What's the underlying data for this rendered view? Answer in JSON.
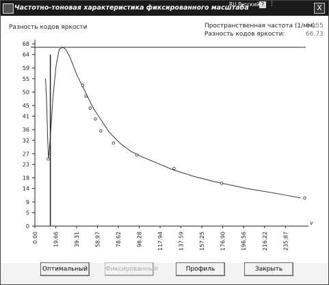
{
  "window": {
    "title": "Частотно-тоновая характеристика фиксированного масштаба",
    "lang_indicator": "RU Русский",
    "help_label": "?",
    "close_label": "X"
  },
  "readouts": {
    "y_axis_title": "Разность кодов яркости",
    "freq_label": "Пространственная частота (1/мм):",
    "freq_value": "14.55",
    "diff_label": "Разность кодов яркости:",
    "diff_value": "66.73"
  },
  "buttons": {
    "optimal": "Оптимальный",
    "fixed": "Фиксированный",
    "profile": "Профиль",
    "close": "Закрыть"
  },
  "chart_data": {
    "type": "line",
    "title": "",
    "xlabel": "",
    "ylabel": "Разность кодов яркости",
    "x_axis_end_label": "v",
    "xlim": [
      0,
      255
    ],
    "ylim": [
      0,
      68
    ],
    "y_ticks": [
      0,
      5,
      9,
      14,
      18,
      23,
      27,
      32,
      36,
      41,
      45,
      50,
      55,
      59,
      64,
      68
    ],
    "x_ticks": [
      "0.00",
      "19.66",
      "39.31",
      "58.97",
      "78.62",
      "98.28",
      "117.94",
      "137.59",
      "157.25",
      "176.90",
      "196.56",
      "216.22",
      "235.87"
    ],
    "cursor": {
      "x": 14.55,
      "y": 66.73
    },
    "series": [
      {
        "x": [
          10,
          11,
          12,
          12.5,
          13,
          15,
          17,
          20,
          23,
          26,
          29,
          33,
          37,
          40,
          45,
          50,
          55,
          60,
          65,
          70,
          80,
          90,
          100,
          115,
          130,
          150,
          170,
          200,
          230,
          250
        ],
        "values": [
          55,
          47,
          33,
          28,
          25,
          36,
          48,
          60,
          66,
          66.7,
          66,
          63,
          59,
          56,
          52,
          48,
          44,
          41,
          38,
          35,
          31,
          28,
          26,
          23.5,
          21,
          18.5,
          16.5,
          14,
          12,
          10.5
        ]
      }
    ],
    "markers": {
      "x": [
        12.5,
        45,
        48,
        52,
        57,
        62,
        74,
        96,
        131,
        176,
        254
      ],
      "y": [
        25,
        52.5,
        48.5,
        44,
        40,
        35.5,
        31,
        26.5,
        21.5,
        16,
        10.5
      ]
    }
  }
}
